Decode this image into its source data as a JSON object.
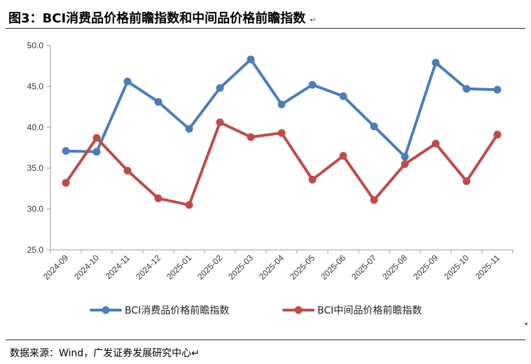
{
  "header": {
    "title": "图3：BCI消费品价格前瞻指数和中间品价格前瞻指数",
    "return_mark": "↵"
  },
  "footer": {
    "source": "数据来源：Wind，广发证券发展研究中心↵"
  },
  "colors": {
    "consumer": "#4a7ebb",
    "intermediate": "#be4b48",
    "axis": "#9a9a9a"
  },
  "chart_data": {
    "type": "line",
    "title": "",
    "xlabel": "",
    "ylabel": "",
    "ylim": [
      25.0,
      50.0
    ],
    "yticks": [
      "25.0",
      "30.0",
      "35.0",
      "40.0",
      "45.0",
      "50.0"
    ],
    "grid": false,
    "legend_position": "bottom",
    "categories": [
      "2024-09",
      "2024-10",
      "2024-11",
      "2024-12",
      "2025-01",
      "2025-02",
      "2025-03",
      "2025-04",
      "2025-05",
      "2025-06",
      "2025-07",
      "2025-08",
      "2025-09",
      "2025-10",
      "2025-11"
    ],
    "series": [
      {
        "name": "BCI消费品价格前瞻指数",
        "values": [
          37.1,
          37.0,
          45.6,
          43.1,
          39.8,
          44.8,
          48.3,
          42.8,
          45.2,
          43.8,
          40.1,
          36.4,
          47.9,
          44.7,
          44.6
        ]
      },
      {
        "name": "BCI中间品价格前瞻指数",
        "values": [
          33.2,
          38.7,
          34.7,
          31.3,
          30.5,
          40.6,
          38.8,
          39.3,
          33.6,
          36.5,
          31.1,
          35.5,
          38.0,
          33.4,
          39.1
        ]
      }
    ]
  }
}
